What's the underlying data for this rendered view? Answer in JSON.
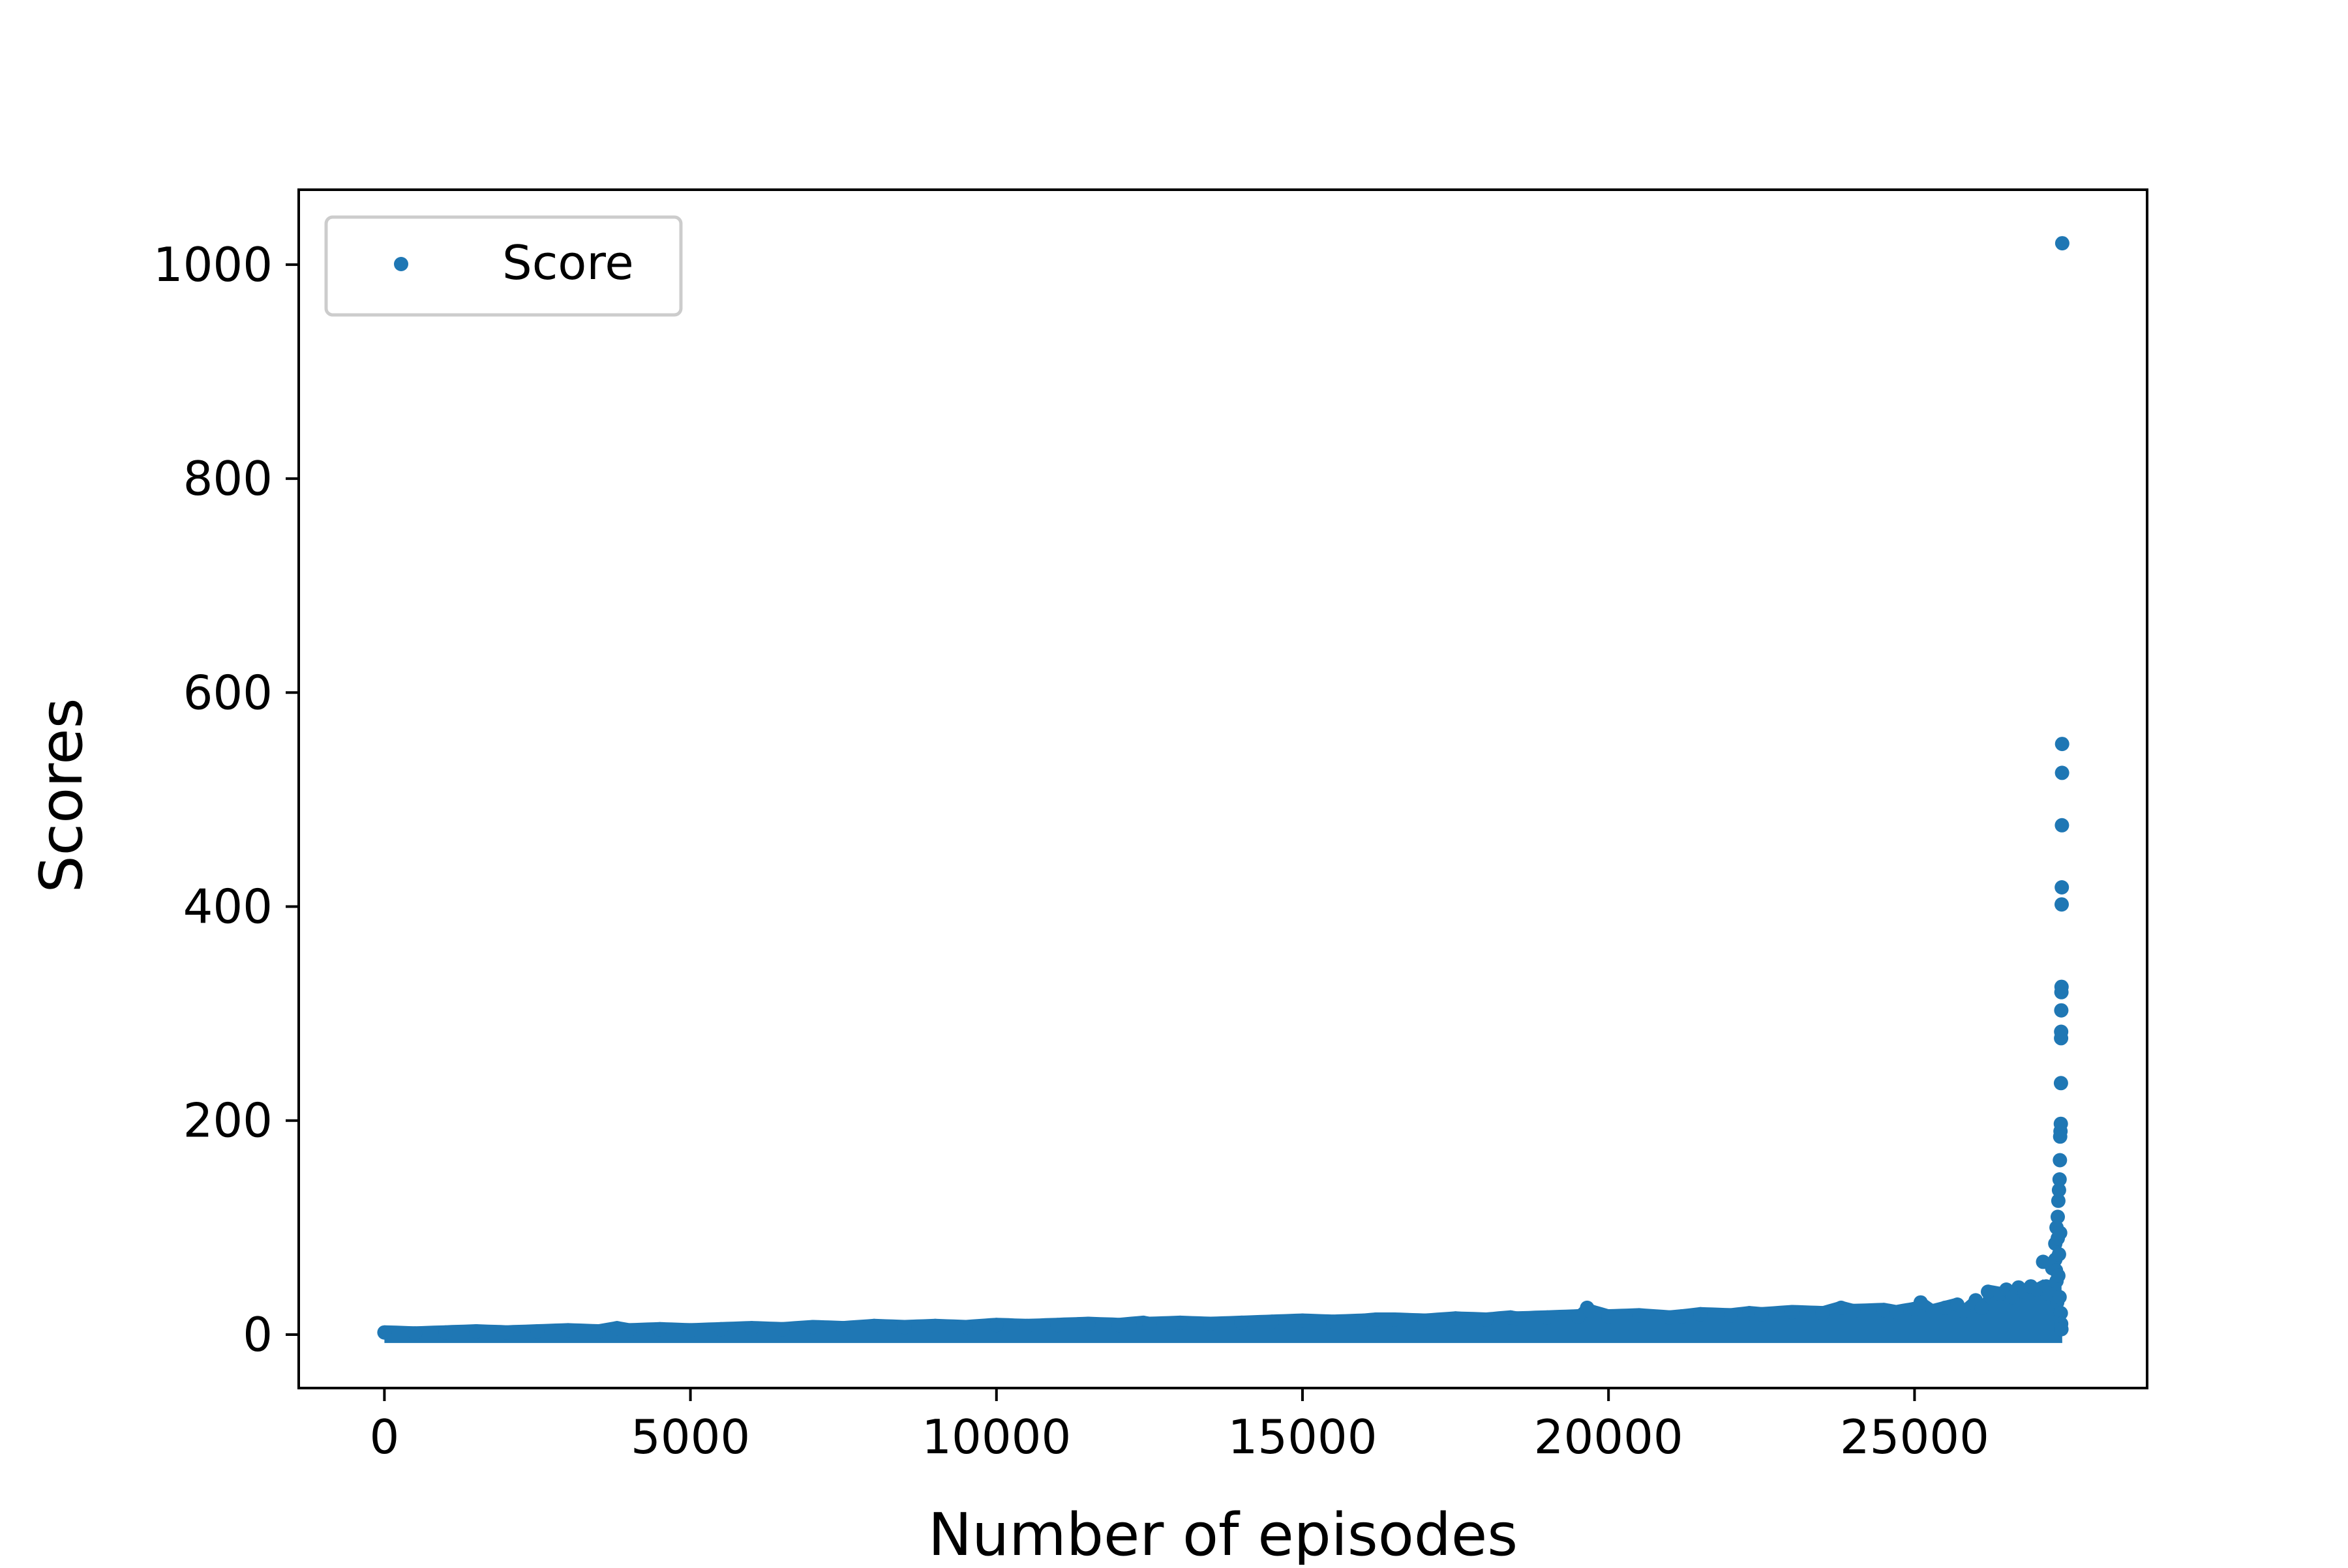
{
  "chart_data": {
    "type": "scatter",
    "title": "",
    "xlabel": "Number of episodes",
    "ylabel": "Scores",
    "xlim": [
      -1400,
      28800
    ],
    "ylim": [
      -50,
      1070
    ],
    "xticks": [
      0,
      5000,
      10000,
      15000,
      20000,
      25000
    ],
    "xtick_labels": [
      "0",
      "5000",
      "10000",
      "15000",
      "20000",
      "25000"
    ],
    "yticks": [
      0,
      200,
      400,
      600,
      800,
      1000
    ],
    "ytick_labels": [
      "0",
      "200",
      "400",
      "600",
      "800",
      "1000"
    ],
    "grid": false,
    "legend_position": "top-left",
    "colors": {
      "series": "#1f77b4",
      "axis": "#000000",
      "legend_border": "#cccccc"
    },
    "series": [
      {
        "name": "Score",
        "points": [
          [
            0,
            2
          ],
          [
            500,
            1
          ],
          [
            1000,
            2
          ],
          [
            1500,
            3
          ],
          [
            2000,
            2
          ],
          [
            2500,
            3
          ],
          [
            3000,
            4
          ],
          [
            3500,
            3
          ],
          [
            3800,
            6
          ],
          [
            4000,
            4
          ],
          [
            4500,
            5
          ],
          [
            5000,
            4
          ],
          [
            5500,
            5
          ],
          [
            6000,
            6
          ],
          [
            6500,
            5
          ],
          [
            7000,
            7
          ],
          [
            7500,
            6
          ],
          [
            8000,
            8
          ],
          [
            8500,
            7
          ],
          [
            9000,
            8
          ],
          [
            9500,
            7
          ],
          [
            10000,
            9
          ],
          [
            10500,
            8
          ],
          [
            11000,
            9
          ],
          [
            11500,
            10
          ],
          [
            12000,
            9
          ],
          [
            12400,
            11
          ],
          [
            12500,
            10
          ],
          [
            13000,
            11
          ],
          [
            13500,
            10
          ],
          [
            14000,
            11
          ],
          [
            14500,
            12
          ],
          [
            15000,
            13
          ],
          [
            15500,
            12
          ],
          [
            16000,
            13
          ],
          [
            16200,
            14
          ],
          [
            16500,
            14
          ],
          [
            17000,
            13
          ],
          [
            17500,
            15
          ],
          [
            18000,
            14
          ],
          [
            18400,
            16
          ],
          [
            18500,
            15
          ],
          [
            19000,
            16
          ],
          [
            19500,
            17
          ],
          [
            19650,
            25
          ],
          [
            19700,
            22
          ],
          [
            20000,
            17
          ],
          [
            20500,
            18
          ],
          [
            21000,
            16
          ],
          [
            21200,
            17
          ],
          [
            21500,
            19
          ],
          [
            22000,
            18
          ],
          [
            22300,
            20
          ],
          [
            22500,
            19
          ],
          [
            23000,
            21
          ],
          [
            23500,
            20
          ],
          [
            23800,
            25
          ],
          [
            24000,
            22
          ],
          [
            24500,
            23
          ],
          [
            24700,
            21
          ],
          [
            25000,
            24
          ],
          [
            25100,
            30
          ],
          [
            25300,
            22
          ],
          [
            25500,
            25
          ],
          [
            25700,
            28
          ],
          [
            25800,
            22
          ],
          [
            26000,
            32
          ],
          [
            26100,
            25
          ],
          [
            26200,
            40
          ],
          [
            26400,
            38
          ],
          [
            26500,
            42
          ],
          [
            26600,
            35
          ],
          [
            26700,
            44
          ],
          [
            26800,
            40
          ],
          [
            26900,
            45
          ],
          [
            27000,
            42
          ],
          [
            27100,
            68
          ],
          [
            27150,
            45
          ],
          [
            27200,
            38
          ],
          [
            27250,
            62
          ],
          [
            27300,
            85
          ],
          [
            27320,
            100
          ],
          [
            27340,
            110
          ],
          [
            27350,
            125
          ],
          [
            27360,
            135
          ],
          [
            27370,
            145
          ],
          [
            27375,
            163
          ],
          [
            27380,
            185
          ],
          [
            27385,
            190
          ],
          [
            27390,
            197
          ],
          [
            27392,
            235
          ],
          [
            27394,
            277
          ],
          [
            27396,
            283
          ],
          [
            27398,
            303
          ],
          [
            27400,
            320
          ],
          [
            27402,
            325
          ],
          [
            27404,
            402
          ],
          [
            27406,
            418
          ],
          [
            27408,
            476
          ],
          [
            27410,
            525
          ],
          [
            27412,
            552
          ],
          [
            27414,
            1020
          ],
          [
            27300,
            70
          ],
          [
            27310,
            60
          ],
          [
            27320,
            50
          ],
          [
            27330,
            30
          ],
          [
            27340,
            90
          ],
          [
            27350,
            55
          ],
          [
            27360,
            75
          ],
          [
            27370,
            35
          ],
          [
            27380,
            95
          ],
          [
            27390,
            20
          ],
          [
            27395,
            10
          ],
          [
            27400,
            5
          ]
        ]
      }
    ]
  }
}
